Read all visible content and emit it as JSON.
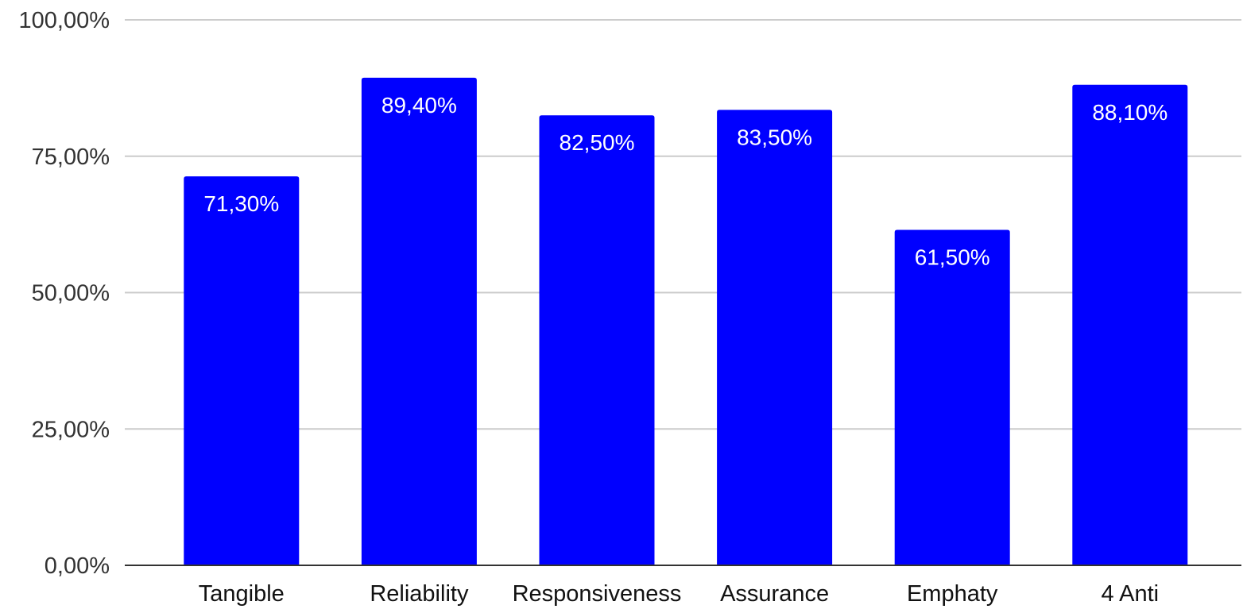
{
  "chart_data": {
    "type": "bar",
    "categories": [
      "Tangible",
      "Reliability",
      "Responsiveness",
      "Assurance",
      "Emphaty",
      "4 Anti"
    ],
    "values": [
      71.3,
      89.4,
      82.5,
      83.5,
      61.5,
      88.1
    ],
    "data_labels": [
      "71,30%",
      "89,40%",
      "82,50%",
      "83,50%",
      "61,50%",
      "88,10%"
    ],
    "y_ticks": [
      0,
      25,
      50,
      75,
      100
    ],
    "y_tick_labels": [
      "0,00%",
      "25,00%",
      "50,00%",
      "75,00%",
      "100,00%"
    ],
    "ylim": [
      0,
      100
    ],
    "grid": true,
    "legend": "none",
    "bar_color": "#0000ff",
    "title": "",
    "xlabel": "",
    "ylabel": ""
  }
}
